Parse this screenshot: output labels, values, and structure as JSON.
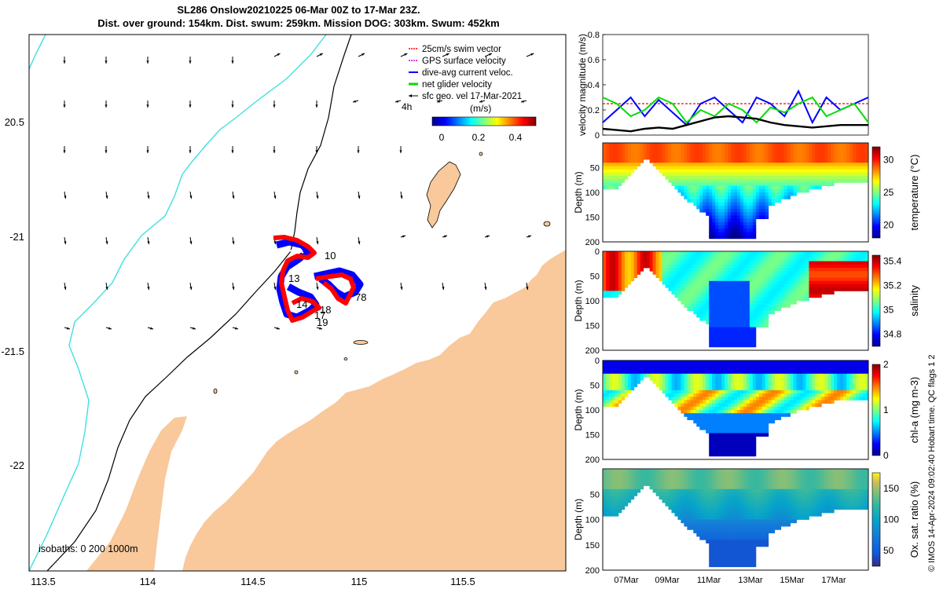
{
  "title": {
    "line1": "SL286 Onslow20210225 06-Mar 00Z to 17-Mar 23Z.",
    "line2": "Dist. over ground: 154km. Dist. swum: 259km. Mission DOG: 303km. Swum: 452km"
  },
  "credit": "© IMOS 14-Apr-2024 09:02:40 Hobart time. QC flags 1  2",
  "map": {
    "x_ticks": [
      "113.5",
      "114",
      "114.5",
      "115",
      "115.5"
    ],
    "y_ticks": [
      "20.5",
      "-21",
      "-21.5",
      "-22"
    ],
    "legend": [
      {
        "label": "25cm/s swim vector",
        "color": "#ff0000"
      },
      {
        "label": "GPS surface velocity",
        "color": "#cc00cc"
      },
      {
        "label": "dive-avg current veloc.",
        "color": "#0000ff"
      },
      {
        "label": "net glider velocity",
        "color": "#00dd00"
      },
      {
        "label": "sfc geo. vel 17-Mar-2021",
        "color": "#000000"
      }
    ],
    "colorbar_unit": "(m/s)",
    "colorbar_ticks": [
      "0",
      "0.2",
      "0.4"
    ],
    "time_label": "4h",
    "isobaths_label": "isobaths: 0   200  1000m",
    "day_labels": [
      {
        "text": "10"
      },
      {
        "text": "13"
      },
      {
        "text": "14"
      },
      {
        "text": "18"
      },
      {
        "text": "17"
      },
      {
        "text": "19"
      },
      {
        "text": "78"
      }
    ],
    "colors": {
      "land": "#f9c89b",
      "iso200": "#000000",
      "iso1000": "#40e0e0",
      "track_red": "#ff0000",
      "track_blue": "#0000ff"
    }
  },
  "chart_data": [
    {
      "type": "line",
      "ylabel": "velocity magnitude (m/s)",
      "ylim": [
        0,
        0.8
      ],
      "y_ticks": [
        "0",
        "0.2",
        "0.4",
        "0.6",
        "0.8"
      ],
      "x_tick_labels": [
        "07Mar",
        "09Mar",
        "11Mar",
        "13Mar",
        "15Mar",
        "17Mar"
      ],
      "series": [
        {
          "color": "#ff0000",
          "values": [
            0.25,
            0.25,
            0.25,
            0.25,
            0.25,
            0.25
          ]
        },
        {
          "color": "#0000ff",
          "values": [
            0.1,
            0.2,
            0.3,
            0.15,
            0.28,
            0.18,
            0.08,
            0.25,
            0.3,
            0.2,
            0.1,
            0.3,
            0.25,
            0.15,
            0.35,
            0.1,
            0.3,
            0.2,
            0.25,
            0.3
          ]
        },
        {
          "color": "#00dd00",
          "values": [
            0.3,
            0.25,
            0.15,
            0.2,
            0.3,
            0.25,
            0.1,
            0.2,
            0.15,
            0.25,
            0.2,
            0.1,
            0.22,
            0.18,
            0.25,
            0.3,
            0.15,
            0.2,
            0.25,
            0.1
          ]
        },
        {
          "color": "#000000",
          "values": [
            0.05,
            0.04,
            0.03,
            0.05,
            0.06,
            0.05,
            0.08,
            0.11,
            0.14,
            0.15,
            0.14,
            0.13,
            0.1,
            0.08,
            0.07,
            0.06,
            0.07,
            0.08,
            0.08,
            0.08
          ]
        }
      ]
    },
    {
      "type": "heatmap",
      "variable": "temperature",
      "ylabel": "Depth (m)",
      "clabel": "temperature (°C)",
      "y_ticks": [
        "50",
        "100",
        "150",
        "200"
      ],
      "c_ticks": [
        "20",
        "25",
        "30"
      ],
      "clim": [
        18,
        32
      ],
      "ylim": [
        0,
        200
      ]
    },
    {
      "type": "heatmap",
      "variable": "salinity",
      "ylabel": "Depth (m)",
      "clabel": "salinity",
      "y_ticks": [
        "0",
        "50",
        "100",
        "150",
        "200"
      ],
      "c_ticks": [
        "34.8",
        "35",
        "35.2",
        "35.4"
      ],
      "clim": [
        34.7,
        35.45
      ],
      "ylim": [
        0,
        200
      ]
    },
    {
      "type": "heatmap",
      "variable": "chl-a",
      "ylabel": "Depth (m)",
      "clabel": "chl-a (mg m-3)",
      "y_ticks": [
        "0",
        "50",
        "100",
        "150",
        "200"
      ],
      "c_ticks": [
        "0",
        "1",
        "2"
      ],
      "clim": [
        0,
        2
      ],
      "ylim": [
        0,
        200
      ]
    },
    {
      "type": "heatmap",
      "variable": "oxygen",
      "ylabel": "Depth (m)",
      "clabel": "Ox. sat. ratio (%)",
      "y_ticks": [
        "50",
        "100",
        "150",
        "200"
      ],
      "c_ticks": [
        "50",
        "100",
        "150"
      ],
      "clim": [
        25,
        175
      ],
      "ylim": [
        0,
        200
      ]
    }
  ]
}
